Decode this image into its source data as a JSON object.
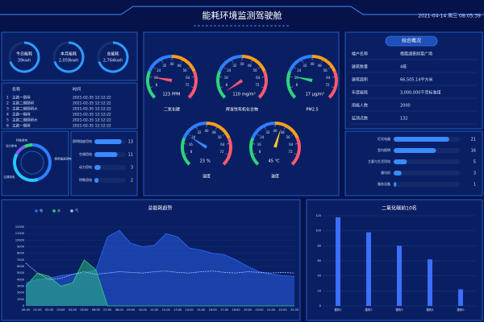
{
  "header": {
    "title": "能耗环境监测驾驶舱",
    "datetime": "2021-04-14 周三 08:05:39"
  },
  "energy_rings": [
    {
      "label": "今日能耗",
      "value_label": "39kwh"
    },
    {
      "label": "本月能耗",
      "value_label": "2,059kwh"
    },
    {
      "label": "总能耗",
      "value_label": "2,764kwh"
    }
  ],
  "event_table": {
    "columns": [
      "名称",
      "时间"
    ],
    "rows": [
      [
        "1",
        "主路一倒闸",
        "2021-02-35 12:12:22"
      ],
      [
        "2",
        "主路二期倒闸",
        "2021-02-35 12:12:22"
      ],
      [
        "3",
        "主路二期倒闸大",
        "2021-02-35 12:12:22"
      ],
      [
        "4",
        "主路一期闸",
        "2021-02-35 12:12:22"
      ],
      [
        "5",
        "主路二期倒闸大",
        "2021-02-35 12:12:22"
      ],
      [
        "6",
        "主路一期闸",
        "2021-02-35 12:12:22"
      ]
    ]
  },
  "overview": {
    "title": "综合概况",
    "rows": [
      [
        "楼户名称",
        "栖霞湖景财富广场"
      ],
      [
        "建筑数量",
        "4栋"
      ],
      [
        "建筑面积",
        "66,505.14平方米"
      ],
      [
        "年度能耗",
        "3,000,000千克标准煤"
      ],
      [
        "用能人数",
        "2000"
      ],
      [
        "监测点数",
        "132"
      ]
    ]
  },
  "chart_data": [
    {
      "type": "gauge",
      "range": [
        0,
        80
      ],
      "ticks": [
        8,
        16,
        24,
        32,
        40,
        48,
        56,
        64,
        72
      ],
      "gauges": [
        {
          "label": "二氧化碳",
          "value": 123,
          "unit": "PPM",
          "color": "#ff5a6e"
        },
        {
          "label": "挥发性有机化合物",
          "value": 110,
          "unit": "mg/m³",
          "color": "#ff5a6e"
        },
        {
          "label": "PM2.5",
          "value": 17,
          "unit": "μg/m³",
          "color": "#2ed47a"
        },
        {
          "label": "湿度",
          "value": 23,
          "unit": "%",
          "color": "#3a8bff"
        },
        {
          "label": "温度",
          "value": 45,
          "unit": "℃",
          "color": "#ffc531"
        }
      ]
    },
    {
      "type": "pie",
      "categories": [
        "照明插座用电",
        "空调用电",
        "动力用电",
        "特殊用电"
      ],
      "values": [
        45,
        38,
        10,
        7
      ],
      "colors": [
        "#2f7fff",
        "#27c7ff",
        "#7b5cff",
        "#2ed47a"
      ]
    },
    {
      "type": "hbar",
      "categories": [
        "照明插座用电",
        "空调用电",
        "动力用电",
        "特殊用电"
      ],
      "values": [
        13,
        11,
        3,
        2
      ],
      "xlim": [
        0,
        15
      ],
      "color": "#3a8bff"
    },
    {
      "type": "hbar",
      "categories": [
        "灯光电器",
        "室内照明",
        "主要与生活用电",
        "通讯机",
        "服务设备"
      ],
      "values": [
        21,
        16,
        5,
        3,
        1
      ],
      "xlim": [
        0,
        25
      ],
      "color": "#3a8bff"
    },
    {
      "type": "area",
      "title": "总能耗趋势",
      "categories": [
        "00:00",
        "01:00",
        "02:00",
        "03:00",
        "04:00",
        "05:00",
        "06:00",
        "07:00",
        "08:00",
        "09:00",
        "10:00",
        "11:00",
        "12:00",
        "13:00",
        "14:00",
        "15:00",
        "16:00",
        "17:00",
        "18:00",
        "19:00",
        "20:00",
        "21:00",
        "22:00",
        "23:00"
      ],
      "series": [
        {
          "name": "电",
          "color": "#2f6bff",
          "values": [
            3500,
            4000,
            4200,
            4600,
            4800,
            5000,
            5500,
            10500,
            11500,
            9500,
            9000,
            9200,
            11000,
            10500,
            8800,
            8500,
            8000,
            7800,
            7000,
            6000,
            5200,
            4800,
            4600,
            4500
          ]
        },
        {
          "name": "水",
          "color": "#2ed47a",
          "values": [
            3000,
            5000,
            4500,
            3000,
            3500,
            7000,
            5500,
            0,
            0,
            0,
            0,
            0,
            0,
            0,
            0,
            0,
            0,
            0,
            0,
            0,
            0,
            0,
            0,
            0
          ]
        },
        {
          "name": "气",
          "color": "#9fc2ff",
          "values": [
            6500,
            5000,
            4000,
            4200,
            4800,
            5200,
            4800,
            5000,
            5200,
            5100,
            5000,
            5200,
            5300,
            5100,
            5000,
            5200,
            5300,
            5100,
            5000,
            5200,
            5100,
            5000,
            5100,
            5000
          ]
        }
      ],
      "ylim": [
        0,
        12000
      ],
      "yticks": [
        0,
        1000,
        2000,
        3000,
        4000,
        5000,
        6000,
        7000,
        8000,
        9000,
        10000,
        11000,
        12000
      ]
    },
    {
      "type": "bar",
      "title": "二氧化碳前10名",
      "categories": [
        "楼栋1",
        "楼栋2",
        "楼栋3",
        "楼栋4",
        "楼栋5"
      ],
      "values": [
        118,
        98,
        80,
        62,
        22
      ],
      "color": "#3a6fff",
      "ylim": [
        0,
        120
      ],
      "yticks": [
        0,
        20,
        40,
        60,
        80,
        100,
        120
      ]
    }
  ]
}
